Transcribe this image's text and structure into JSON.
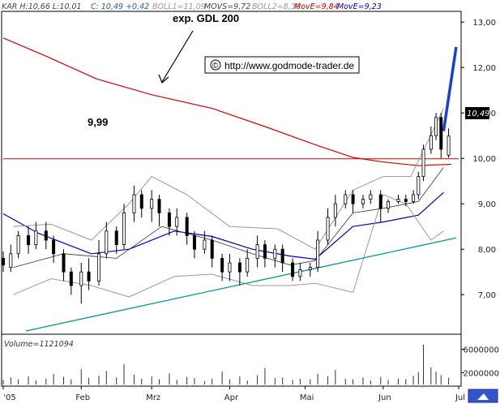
{
  "header": {
    "symbol_stats": "KAR H:10,66 L:10,01",
    "close": "C: 10,49 +0,42",
    "boll1": "BOLL1=11,09",
    "movs": "MOVS=9,72",
    "boll2": "BOLL2=8,36",
    "move1": "MovE=9,84",
    "move2": "MovE=9,23"
  },
  "annotations": {
    "gdl_label": "exp. GDL 200",
    "level_label": "9,99",
    "copyright": "©",
    "url": "http://www.godmode-trader.de",
    "last_price": "10,49",
    "volume_label": "Volume=1121094"
  },
  "colors": {
    "gdl200": "#dd0000",
    "ema_blue": "#0000cc",
    "bollinger": "#999999",
    "sma": "#333333",
    "support": "#009999",
    "forecast": "#1a3fd6",
    "level": "#cc0000",
    "move1": "#cc0000",
    "move2": "#0000cc"
  },
  "chart_data": {
    "type": "line",
    "price_axis": {
      "ticks": [
        "13,00",
        "12,00",
        "11,00",
        "10,00",
        "9,00",
        "8,00",
        "7,00"
      ],
      "ylim": [
        6.2,
        13.2
      ]
    },
    "volume_axis": {
      "ticks": [
        "6000000",
        "2000000"
      ]
    },
    "time_axis": {
      "ticks": [
        "'05",
        "Feb",
        "Mrz",
        "Apr",
        "Mai",
        "Jun",
        "Jul"
      ]
    },
    "horizontal_level": 9.99,
    "series": [
      {
        "key": "gdl",
        "name": "exp. GDL 200",
        "x": [
          "2005-01-01",
          "2005-01-18",
          "2005-02-07",
          "2005-03-01",
          "2005-03-25",
          "2005-04-15",
          "2005-05-05",
          "2005-05-20",
          "2005-06-01",
          "2005-06-15",
          "2005-06-28"
        ],
        "y": [
          12.65,
          12.25,
          11.75,
          11.4,
          11.1,
          10.7,
          10.3,
          10.02,
          9.92,
          9.84,
          9.87
        ]
      },
      {
        "key": "ema",
        "x": [
          "2005-01-01",
          "2005-01-15",
          "2005-02-05",
          "2005-02-20",
          "2005-03-10",
          "2005-03-25",
          "2005-04-10",
          "2005-04-25",
          "2005-05-05",
          "2005-05-20",
          "2005-06-01",
          "2005-06-15",
          "2005-06-25"
        ],
        "y": [
          8.78,
          8.35,
          7.9,
          8.0,
          8.4,
          8.28,
          8.0,
          7.85,
          7.78,
          8.5,
          8.6,
          8.75,
          9.25
        ]
      },
      {
        "key": "boll_upper",
        "x": [
          "2005-01-05",
          "2005-01-20",
          "2005-02-05",
          "2005-02-20",
          "2005-03-01",
          "2005-03-15",
          "2005-04-01",
          "2005-04-20",
          "2005-05-05",
          "2005-05-20",
          "2005-06-01",
          "2005-06-12",
          "2005-06-25"
        ],
        "y": [
          8.5,
          8.55,
          8.2,
          9.0,
          9.6,
          9.2,
          8.5,
          8.45,
          8.0,
          9.3,
          9.6,
          9.6,
          11.1
        ]
      },
      {
        "key": "boll_lower",
        "x": [
          "2005-01-05",
          "2005-01-20",
          "2005-02-05",
          "2005-02-20",
          "2005-03-10",
          "2005-03-25",
          "2005-04-10",
          "2005-04-25",
          "2005-05-05",
          "2005-05-20",
          "2005-06-01",
          "2005-06-10",
          "2005-06-20",
          "2005-06-25"
        ],
        "y": [
          7.0,
          7.35,
          7.2,
          6.95,
          7.4,
          7.45,
          7.2,
          7.2,
          7.25,
          7.05,
          9.2,
          9.0,
          8.2,
          8.4
        ]
      },
      {
        "key": "sma",
        "x": [
          "2005-01-05",
          "2005-01-25",
          "2005-02-15",
          "2005-03-05",
          "2005-03-25",
          "2005-04-10",
          "2005-04-25",
          "2005-05-05",
          "2005-05-20",
          "2005-06-01",
          "2005-06-15",
          "2005-06-25"
        ],
        "y": [
          7.6,
          7.9,
          7.8,
          8.5,
          8.2,
          7.9,
          7.65,
          7.75,
          8.8,
          8.9,
          9.05,
          9.8
        ]
      },
      {
        "key": "support",
        "x": [
          "2005-01-10",
          "2005-06-30"
        ],
        "y": [
          6.2,
          8.25
        ]
      },
      {
        "key": "forecast",
        "x": [
          "2005-06-25",
          "2005-06-30"
        ],
        "y": [
          10.6,
          12.45
        ]
      }
    ],
    "candles": [
      [
        "2005-01-01",
        7.8,
        7.65,
        7.95,
        7.5
      ],
      [
        "2005-01-04",
        7.6,
        7.9,
        8.1,
        7.5
      ],
      [
        "2005-01-07",
        7.9,
        8.3,
        8.4,
        7.8
      ],
      [
        "2005-01-11",
        8.3,
        8.1,
        8.5,
        7.9
      ],
      [
        "2005-01-14",
        8.1,
        8.4,
        8.6,
        8.0
      ],
      [
        "2005-01-18",
        8.4,
        8.2,
        8.6,
        8.0
      ],
      [
        "2005-01-21",
        8.2,
        7.9,
        8.3,
        7.7
      ],
      [
        "2005-01-25",
        7.9,
        7.5,
        8.0,
        7.3
      ],
      [
        "2005-01-28",
        7.5,
        7.2,
        7.6,
        7.0
      ],
      [
        "2005-02-01",
        7.2,
        7.5,
        7.7,
        6.8
      ],
      [
        "2005-02-04",
        7.5,
        7.3,
        7.8,
        7.1
      ],
      [
        "2005-02-08",
        7.3,
        7.9,
        8.2,
        7.2
      ],
      [
        "2005-02-11",
        7.9,
        8.4,
        8.6,
        7.8
      ],
      [
        "2005-02-15",
        8.4,
        8.1,
        8.5,
        7.9
      ],
      [
        "2005-02-18",
        8.1,
        8.8,
        9.0,
        8.0
      ],
      [
        "2005-02-22",
        8.8,
        9.2,
        9.4,
        8.6
      ],
      [
        "2005-02-25",
        9.2,
        8.9,
        9.3,
        8.7
      ],
      [
        "2005-03-01",
        8.9,
        9.1,
        9.3,
        8.6
      ],
      [
        "2005-03-04",
        9.1,
        8.8,
        9.2,
        8.5
      ],
      [
        "2005-03-08",
        8.8,
        8.5,
        8.9,
        8.3
      ],
      [
        "2005-03-11",
        8.5,
        8.7,
        8.9,
        8.3
      ],
      [
        "2005-03-15",
        8.7,
        8.3,
        8.8,
        8.1
      ],
      [
        "2005-03-18",
        8.3,
        8.0,
        8.4,
        7.8
      ],
      [
        "2005-03-22",
        8.0,
        8.2,
        8.4,
        7.9
      ],
      [
        "2005-03-25",
        8.2,
        7.8,
        8.3,
        7.6
      ],
      [
        "2005-03-29",
        7.8,
        7.5,
        7.9,
        7.3
      ],
      [
        "2005-04-01",
        7.5,
        7.7,
        7.9,
        7.3
      ],
      [
        "2005-04-05",
        7.7,
        7.5,
        7.8,
        7.2
      ],
      [
        "2005-04-08",
        7.5,
        7.8,
        8.0,
        7.4
      ],
      [
        "2005-04-12",
        7.8,
        8.1,
        8.3,
        7.6
      ],
      [
        "2005-04-15",
        8.1,
        7.8,
        8.2,
        7.6
      ],
      [
        "2005-04-19",
        7.8,
        8.0,
        8.1,
        7.6
      ],
      [
        "2005-04-22",
        8.0,
        7.7,
        8.1,
        7.5
      ],
      [
        "2005-04-26",
        7.7,
        7.4,
        7.8,
        7.3
      ],
      [
        "2005-04-29",
        7.4,
        7.55,
        7.7,
        7.3
      ],
      [
        "2005-05-03",
        7.55,
        7.6,
        7.7,
        7.4
      ],
      [
        "2005-05-06",
        7.6,
        8.2,
        8.4,
        7.5
      ],
      [
        "2005-05-10",
        8.2,
        8.7,
        8.9,
        8.1
      ],
      [
        "2005-05-13",
        8.7,
        9.0,
        9.2,
        8.5
      ],
      [
        "2005-05-17",
        9.0,
        9.2,
        9.3,
        8.9
      ],
      [
        "2005-05-20",
        9.2,
        9.0,
        9.3,
        8.8
      ],
      [
        "2005-05-24",
        9.0,
        9.1,
        9.2,
        8.9
      ],
      [
        "2005-05-27",
        9.1,
        9.2,
        9.3,
        9.0
      ],
      [
        "2005-05-31",
        9.2,
        8.9,
        9.3,
        8.6
      ],
      [
        "2005-06-03",
        8.9,
        9.05,
        9.1,
        8.8
      ],
      [
        "2005-06-07",
        9.05,
        9.1,
        9.2,
        9.0
      ],
      [
        "2005-06-10",
        9.1,
        9.05,
        9.2,
        8.95
      ],
      [
        "2005-06-13",
        9.05,
        9.2,
        9.3,
        9.0
      ],
      [
        "2005-06-15",
        9.2,
        9.6,
        9.7,
        9.1
      ],
      [
        "2005-06-17",
        9.6,
        10.2,
        10.3,
        9.5
      ],
      [
        "2005-06-20",
        10.2,
        10.5,
        10.7,
        10.1
      ],
      [
        "2005-06-22",
        10.5,
        10.9,
        11.0,
        10.4
      ],
      [
        "2005-06-24",
        10.9,
        10.2,
        11.0,
        10.0
      ],
      [
        "2005-06-27",
        10.07,
        10.49,
        10.66,
        10.01
      ]
    ],
    "volume": [
      [
        "2005-01-01",
        800000
      ],
      [
        "2005-01-04",
        1200000
      ],
      [
        "2005-01-07",
        900000
      ],
      [
        "2005-01-11",
        1400000
      ],
      [
        "2005-01-14",
        700000
      ],
      [
        "2005-01-18",
        1000000
      ],
      [
        "2005-01-21",
        1800000
      ],
      [
        "2005-01-25",
        1300000
      ],
      [
        "2005-01-28",
        900000
      ],
      [
        "2005-02-01",
        2600000
      ],
      [
        "2005-02-04",
        1100000
      ],
      [
        "2005-02-08",
        1500000
      ],
      [
        "2005-02-11",
        2300000
      ],
      [
        "2005-02-15",
        1200000
      ],
      [
        "2005-02-18",
        3500000
      ],
      [
        "2005-02-22",
        1700000
      ],
      [
        "2005-02-25",
        1000000
      ],
      [
        "2005-03-01",
        1400000
      ],
      [
        "2005-03-04",
        900000
      ],
      [
        "2005-03-08",
        1900000
      ],
      [
        "2005-03-11",
        800000
      ],
      [
        "2005-03-15",
        1300000
      ],
      [
        "2005-03-18",
        1100000
      ],
      [
        "2005-03-22",
        600000
      ],
      [
        "2005-03-25",
        1000000
      ],
      [
        "2005-03-29",
        2200000
      ],
      [
        "2005-04-01",
        900000
      ],
      [
        "2005-04-05",
        1400000
      ],
      [
        "2005-04-08",
        700000
      ],
      [
        "2005-04-12",
        1600000
      ],
      [
        "2005-04-15",
        2800000
      ],
      [
        "2005-04-19",
        1100000
      ],
      [
        "2005-04-22",
        1200000
      ],
      [
        "2005-04-26",
        800000
      ],
      [
        "2005-04-29",
        1000000
      ],
      [
        "2005-05-03",
        900000
      ],
      [
        "2005-05-06",
        1800000
      ],
      [
        "2005-05-10",
        1400000
      ],
      [
        "2005-05-13",
        2500000
      ],
      [
        "2005-05-17",
        1000000
      ],
      [
        "2005-05-20",
        900000
      ],
      [
        "2005-05-24",
        1200000
      ],
      [
        "2005-05-27",
        700000
      ],
      [
        "2005-05-31",
        1300000
      ],
      [
        "2005-06-03",
        800000
      ],
      [
        "2005-06-07",
        1000000
      ],
      [
        "2005-06-10",
        900000
      ],
      [
        "2005-06-13",
        1500000
      ],
      [
        "2005-06-15",
        2100000
      ],
      [
        "2005-06-17",
        6800000
      ],
      [
        "2005-06-20",
        2900000
      ],
      [
        "2005-06-22",
        2200000
      ],
      [
        "2005-06-24",
        1600000
      ],
      [
        "2005-06-27",
        1121094
      ]
    ]
  }
}
